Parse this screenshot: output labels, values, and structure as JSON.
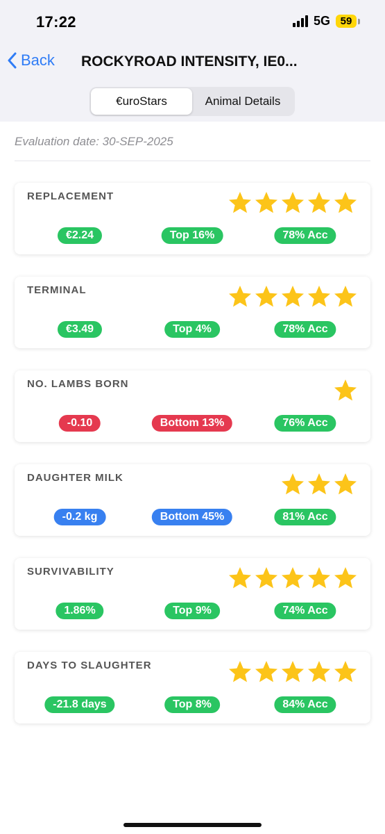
{
  "status": {
    "time": "17:22",
    "network": "5G",
    "battery": "59"
  },
  "nav": {
    "back_label": "Back",
    "title": "ROCKYROAD INTENSITY, IE0..."
  },
  "segments": [
    {
      "label": "€uroStars",
      "active": true
    },
    {
      "label": "Animal Details",
      "active": false
    }
  ],
  "evaluation_date": "Evaluation date: 30-SEP-2025",
  "colors": {
    "green": "#2ac562",
    "red": "#e5394f",
    "blue": "#3880f0",
    "star": "#fcc419",
    "link": "#2f7cf6"
  },
  "cards": [
    {
      "title": "REPLACEMENT",
      "stars": 5,
      "value": "€2.24",
      "rank": "Top 16%",
      "accuracy": "78% Acc",
      "value_color": "green",
      "rank_color": "green"
    },
    {
      "title": "TERMINAL",
      "stars": 5,
      "value": "€3.49",
      "rank": "Top 4%",
      "accuracy": "78% Acc",
      "value_color": "green",
      "rank_color": "green"
    },
    {
      "title": "NO. LAMBS BORN",
      "stars": 1,
      "value": "-0.10",
      "rank": "Bottom 13%",
      "accuracy": "76% Acc",
      "value_color": "red",
      "rank_color": "red"
    },
    {
      "title": "DAUGHTER MILK",
      "stars": 3,
      "value": "-0.2 kg",
      "rank": "Bottom 45%",
      "accuracy": "81% Acc",
      "value_color": "blue",
      "rank_color": "blue"
    },
    {
      "title": "SURVIVABILITY",
      "stars": 5,
      "value": "1.86%",
      "rank": "Top 9%",
      "accuracy": "74% Acc",
      "value_color": "green",
      "rank_color": "green"
    },
    {
      "title": "DAYS TO SLAUGHTER",
      "stars": 5,
      "value": "-21.8 days",
      "rank": "Top 8%",
      "accuracy": "84% Acc",
      "value_color": "green",
      "rank_color": "green"
    }
  ]
}
